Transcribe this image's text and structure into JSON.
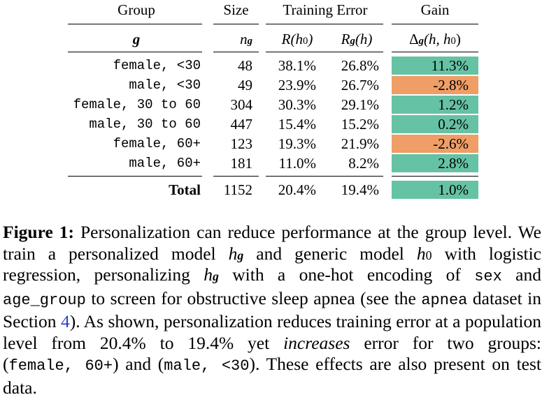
{
  "table": {
    "header1": {
      "group": "Group",
      "size": "Size",
      "training_error": "Training Error",
      "gain": "Gain"
    },
    "header2": {
      "g": "g",
      "n": "n",
      "n_sub": "g",
      "r_h0": "R(h",
      "r_h0_sub": "0",
      "r_h0_close": ")",
      "rg": "R",
      "rg_sub": "g",
      "rg_rest": "(h)",
      "delta": "Δ",
      "delta_sub": "g",
      "delta_rest": "(h, h",
      "delta_sub2": "0",
      "delta_close": ")"
    },
    "rows": [
      {
        "group": "female, <30",
        "size": "48",
        "r0": "38.1%",
        "rg": "26.8%",
        "gain": "11.3%",
        "color": "#66c2a5"
      },
      {
        "group": "male, <30",
        "size": "49",
        "r0": "23.9%",
        "rg": "26.7%",
        "gain": "-2.8%",
        "color": "#ee9e66"
      },
      {
        "group": "female, 30 to 60",
        "size": "304",
        "r0": "30.3%",
        "rg": "29.1%",
        "gain": "1.2%",
        "color": "#66c2a5"
      },
      {
        "group": "male, 30 to 60",
        "size": "447",
        "r0": "15.4%",
        "rg": "15.2%",
        "gain": "0.2%",
        "color": "#66c2a5"
      },
      {
        "group": "female, 60+",
        "size": "123",
        "r0": "19.3%",
        "rg": "21.9%",
        "gain": "-2.6%",
        "color": "#ee9e66"
      },
      {
        "group": "male, 60+",
        "size": "181",
        "r0": "11.0%",
        "rg": "8.2%",
        "gain": "2.8%",
        "color": "#66c2a5"
      }
    ],
    "total": {
      "group": "Total",
      "size": "1152",
      "r0": "20.4%",
      "rg": "19.4%",
      "gain": "1.0%",
      "color": "#66c2a5"
    }
  },
  "caption": {
    "label": "Figure 1:",
    "t1": " Personalization can reduce performance at the group level. We train a personalized model ",
    "h": "h",
    "g": "g",
    "t2": " and generic model ",
    "h0": "h",
    "zero": "0",
    "t3": " with logistic regression, personalizing ",
    "t4": " with a one-hot encoding of ",
    "sex": "sex",
    "t5": " and ",
    "age_group": "age_group",
    "t6": " to screen for obstructive sleep apnea (see the ",
    "apnea": "apnea",
    "t7": " dataset in Section ",
    "section": "4",
    "t8": "). As shown, personalization reduces training error at a population level from 20.4% to 19.4% yet ",
    "increases": "increases",
    "t9": " error for two groups: (",
    "g1": "female, 60+",
    "t10": ") and (",
    "g2": "male, <30",
    "t11": "). These effects are also present on test data."
  }
}
